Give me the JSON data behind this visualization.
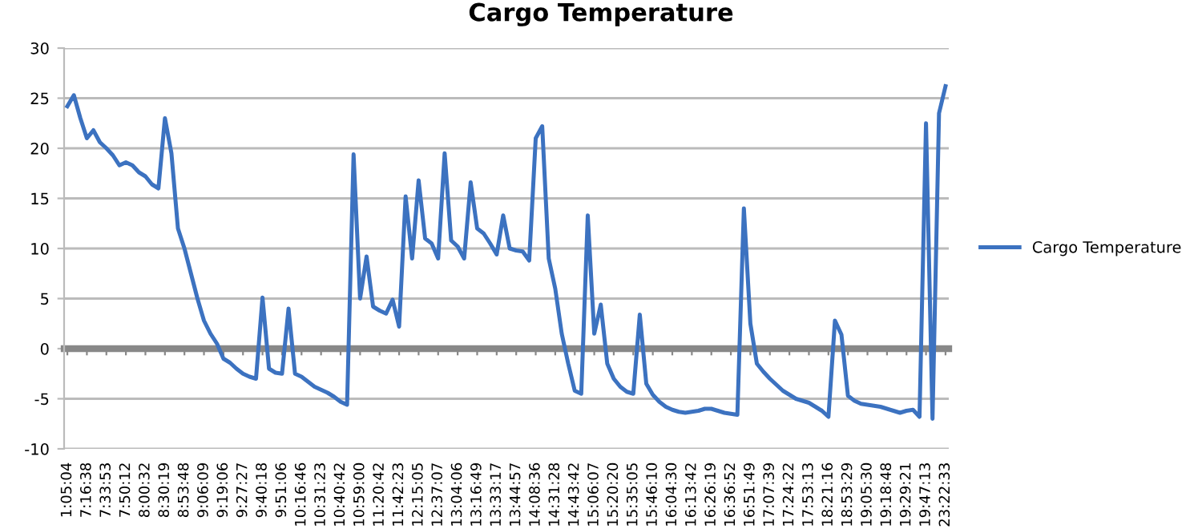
{
  "chart_data": {
    "type": "line",
    "title": "Cargo Temperature",
    "categories": [
      "1:05:04",
      null,
      null,
      "7:16:38",
      null,
      null,
      "7:33:53",
      null,
      null,
      "7:50:12",
      null,
      null,
      "8:00:32",
      null,
      null,
      "8:30:19",
      null,
      null,
      "8:53:48",
      null,
      null,
      "9:06:09",
      null,
      null,
      "9:19:06",
      null,
      null,
      "9:27:27",
      null,
      null,
      "9:40:18",
      null,
      null,
      "9:51:06",
      null,
      null,
      "10:16:46",
      null,
      null,
      "10:31:23",
      null,
      null,
      "10:40:42",
      null,
      null,
      "10:59:00",
      null,
      null,
      "11:20:42",
      null,
      null,
      "11:42:23",
      null,
      null,
      "12:15:05",
      null,
      null,
      "12:37:07",
      null,
      null,
      "13:04:06",
      null,
      null,
      "13:16:49",
      null,
      null,
      "13:33:17",
      null,
      null,
      "13:44:57",
      null,
      null,
      "14:08:36",
      null,
      null,
      "14:31:28",
      null,
      null,
      "14:43:42",
      null,
      null,
      "15:06:07",
      null,
      null,
      "15:20:20",
      null,
      null,
      "15:35:05",
      null,
      null,
      "15:46:10",
      null,
      null,
      "16:04:30",
      null,
      null,
      "16:13:42",
      null,
      null,
      "16:26:19",
      null,
      null,
      "16:36:52",
      null,
      null,
      "16:51:49",
      null,
      null,
      "17:07:39",
      null,
      null,
      "17:24:22",
      null,
      null,
      "17:53:13",
      null,
      null,
      "18:21:16",
      null,
      null,
      "18:53:29",
      null,
      null,
      "19:05:30",
      null,
      null,
      "19:18:48",
      null,
      null,
      "19:29:21",
      null,
      null,
      "19:47:13",
      null,
      null,
      "23:22:33"
    ],
    "series": [
      {
        "name": "Cargo Temperature",
        "color": "#3c72c0",
        "values": [
          24.2,
          25.3,
          23.0,
          21.0,
          21.8,
          20.6,
          20.0,
          19.3,
          18.3,
          18.6,
          18.3,
          17.6,
          17.2,
          16.4,
          16.0,
          23.0,
          19.5,
          12.0,
          10.0,
          7.5,
          5.0,
          2.8,
          1.5,
          0.5,
          -1.0,
          -1.4,
          -2.0,
          -2.5,
          -2.8,
          -3.0,
          5.1,
          -2.0,
          -2.4,
          -2.5,
          4.0,
          -2.5,
          -2.8,
          -3.3,
          -3.8,
          -4.1,
          -4.4,
          -4.8,
          -5.3,
          -5.6,
          19.4,
          5.0,
          9.2,
          4.2,
          3.8,
          3.5,
          4.9,
          2.2,
          15.2,
          9.0,
          16.8,
          11.0,
          10.5,
          9.0,
          19.5,
          10.8,
          10.2,
          9.0,
          16.6,
          12.0,
          11.5,
          10.5,
          9.4,
          13.3,
          10.0,
          9.8,
          9.7,
          8.8,
          21.0,
          22.2,
          9.0,
          6.0,
          1.5,
          -1.5,
          -4.2,
          -4.5,
          13.3,
          1.5,
          4.4,
          -1.5,
          -3.0,
          -3.8,
          -4.3,
          -4.5,
          3.4,
          -3.5,
          -4.6,
          -5.3,
          -5.8,
          -6.1,
          -6.3,
          -6.4,
          -6.3,
          -6.2,
          -6.0,
          -6.0,
          -6.2,
          -6.4,
          -6.5,
          -6.6,
          14.0,
          2.5,
          -1.5,
          -2.3,
          -3.0,
          -3.6,
          -4.2,
          -4.6,
          -5.0,
          -5.2,
          -5.4,
          -5.8,
          -6.2,
          -6.8,
          2.8,
          1.4,
          -4.7,
          -5.2,
          -5.5,
          -5.6,
          -5.7,
          -5.8,
          -6.0,
          -6.2,
          -6.4,
          -6.2,
          -6.1,
          -6.8,
          22.5,
          -7.0,
          23.5,
          26.2
        ]
      }
    ],
    "ylim": [
      -10,
      30
    ],
    "yticks": [
      -10,
      -5,
      0,
      5,
      10,
      15,
      20,
      25,
      30
    ],
    "grid": "y",
    "legend": "right",
    "marker": "none",
    "line_style": "solid"
  }
}
